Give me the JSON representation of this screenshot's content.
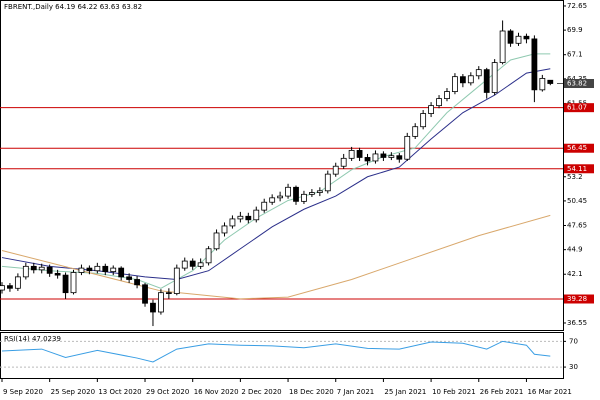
{
  "chart_data": {
    "type": "candlestick",
    "title": "FBRENT.,Daily 64.19 64.22 63.63 63.82",
    "last_price": 63.82,
    "xlim": [
      -0.25,
      70.6
    ],
    "xticks": [
      {
        "value": 0,
        "label": "9 Sep 2020"
      },
      {
        "value": 6,
        "label": "25 Sep 2020"
      },
      {
        "value": 12,
        "label": "13 Oct 2020"
      },
      {
        "value": 18,
        "label": "29 Oct 2020"
      },
      {
        "value": 24,
        "label": "16 Nov 2020"
      },
      {
        "value": 30,
        "label": "2 Dec 2020"
      },
      {
        "value": 36,
        "label": "18 Dec 2020"
      },
      {
        "value": 42,
        "label": "7 Jan 2021"
      },
      {
        "value": 48,
        "label": "25 Jan 2021"
      },
      {
        "value": 54,
        "label": "10 Feb 2021"
      },
      {
        "value": 60,
        "label": "26 Feb 2021"
      },
      {
        "value": 66,
        "label": "16 Mar 2021"
      }
    ],
    "ylim": [
      35.75,
      73.33
    ],
    "yticks": [
      72.65,
      69.9,
      67.1,
      64.35,
      61.55,
      53.2,
      50.45,
      47.65,
      44.9,
      42.1,
      36.55
    ],
    "levels": [
      61.07,
      56.45,
      54.11,
      39.28
    ],
    "level_color": "#cc0000",
    "open": [
      40.3,
      40.8,
      40.5,
      41.8,
      43.0,
      42.6,
      42.9,
      42.2,
      42.0,
      40.0,
      42.3,
      42.8,
      42.5,
      43.0,
      42.4,
      42.8,
      41.8,
      41.5,
      40.9,
      38.8,
      37.8,
      40.0,
      39.9,
      42.8,
      43.6,
      43.0,
      43.4,
      45.0,
      46.8,
      47.6,
      48.4,
      48.7,
      48.3,
      49.4,
      50.3,
      50.8,
      51.0,
      52.0,
      50.4,
      51.2,
      51.4,
      51.6,
      53.5,
      54.4,
      55.3,
      56.2,
      55.4,
      55.0,
      55.8,
      55.4,
      55.6,
      55.2,
      57.8,
      58.9,
      60.4,
      61.3,
      62.1,
      62.9,
      64.6,
      63.9,
      64.7,
      65.4,
      62.8,
      66.2,
      69.8,
      68.4,
      69.2,
      68.9,
      63.1,
      64.19
    ],
    "high": [
      41.2,
      41.1,
      42.2,
      43.4,
      43.4,
      43.3,
      43.2,
      42.6,
      42.3,
      42.6,
      43.2,
      43.1,
      43.4,
      43.3,
      43.1,
      43.0,
      42.2,
      41.9,
      41.1,
      39.2,
      40.4,
      40.5,
      43.2,
      44.0,
      43.9,
      43.9,
      45.3,
      47.2,
      48.0,
      48.8,
      49.2,
      49.1,
      49.8,
      50.7,
      51.2,
      51.5,
      52.4,
      52.2,
      51.6,
      51.8,
      52.0,
      53.9,
      54.8,
      55.8,
      56.6,
      56.5,
      55.8,
      56.2,
      56.1,
      56.0,
      55.9,
      58.2,
      59.3,
      60.8,
      61.7,
      62.5,
      63.3,
      65.0,
      64.9,
      65.1,
      65.8,
      65.6,
      66.6,
      71.0,
      70.0,
      69.6,
      69.5,
      69.3,
      64.8,
      64.22
    ],
    "low": [
      39.9,
      40.1,
      40.2,
      41.5,
      42.2,
      42.2,
      41.8,
      41.6,
      39.3,
      39.8,
      42.0,
      42.1,
      42.2,
      42.0,
      42.0,
      41.4,
      41.1,
      40.5,
      38.4,
      36.2,
      37.5,
      39.3,
      39.7,
      42.5,
      42.6,
      42.7,
      43.1,
      44.8,
      46.4,
      47.3,
      48.0,
      47.9,
      48.0,
      49.1,
      50.0,
      50.4,
      50.7,
      50.0,
      50.1,
      50.9,
      51.0,
      51.3,
      53.2,
      54.1,
      55.0,
      55.0,
      54.5,
      54.7,
      55.0,
      55.1,
      54.8,
      55.0,
      57.5,
      58.6,
      60.0,
      61.0,
      61.8,
      62.6,
      63.4,
      63.6,
      64.3,
      62.1,
      62.5,
      66.0,
      68.0,
      68.1,
      68.4,
      61.7,
      62.9,
      63.63
    ],
    "close": [
      40.8,
      40.5,
      41.8,
      43.0,
      42.6,
      42.9,
      42.2,
      42.0,
      40.0,
      42.3,
      42.8,
      42.5,
      43.0,
      42.4,
      42.8,
      41.8,
      41.5,
      40.9,
      38.8,
      37.8,
      40.0,
      39.9,
      42.8,
      43.6,
      43.0,
      43.4,
      45.0,
      46.8,
      47.6,
      48.4,
      48.7,
      48.3,
      49.4,
      50.3,
      50.8,
      51.0,
      52.0,
      50.4,
      51.2,
      51.4,
      51.6,
      53.5,
      54.4,
      55.3,
      56.2,
      55.4,
      55.0,
      55.8,
      55.4,
      55.6,
      55.2,
      57.8,
      58.9,
      60.4,
      61.3,
      62.1,
      62.9,
      64.6,
      63.9,
      64.7,
      65.4,
      62.8,
      66.2,
      69.8,
      68.4,
      69.2,
      68.9,
      63.1,
      64.4,
      63.82
    ],
    "series": [
      {
        "color": "#8fc9b0",
        "x": [
          0,
          6,
          12,
          17,
          20,
          24,
          28,
          32,
          36,
          40,
          44,
          48,
          52,
          56,
          60,
          64,
          67,
          69
        ],
        "values": [
          43,
          42.5,
          42.2,
          41.5,
          40.5,
          42.5,
          46,
          48.5,
          50.5,
          51.5,
          54,
          55.5,
          56.5,
          60.5,
          63.5,
          66.5,
          67.2,
          67.2
        ]
      },
      {
        "color": "#2b2f8a",
        "x": [
          0,
          6,
          12,
          18,
          22,
          26,
          30,
          34,
          38,
          42,
          46,
          50,
          54,
          58,
          62,
          66,
          69
        ],
        "values": [
          44,
          43,
          42.5,
          41.8,
          41.5,
          42.5,
          45,
          47.5,
          49.5,
          51,
          53.2,
          54.3,
          57.5,
          60.5,
          62.5,
          65,
          65.5
        ]
      },
      {
        "color": "#d9a86c",
        "x": [
          0,
          10,
          20,
          30,
          36,
          44,
          52,
          60,
          69
        ],
        "values": [
          44.8,
          42.5,
          40.2,
          39.3,
          39.5,
          41.5,
          44,
          46.5,
          48.8
        ]
      }
    ],
    "rsi": {
      "label": "RSI(14) 47.0239",
      "color": "#3a9ee4",
      "ylim": [
        13,
        83
      ],
      "yticks": [
        70,
        30
      ],
      "x": [
        0,
        5,
        8,
        12,
        17,
        19,
        22,
        26,
        30,
        34,
        38,
        42,
        46,
        50,
        54,
        58,
        61,
        63,
        66,
        67,
        69
      ],
      "values": [
        55,
        58,
        45,
        56,
        44,
        38,
        58,
        66,
        64,
        63,
        60,
        66,
        59,
        58,
        69,
        67,
        58,
        70,
        64,
        50,
        47
      ]
    }
  }
}
